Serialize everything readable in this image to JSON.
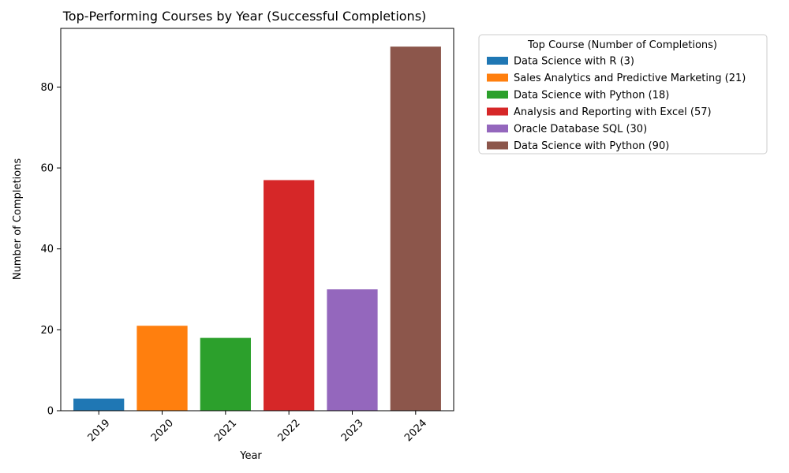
{
  "chart_data": {
    "type": "bar",
    "title": "Top-Performing Courses by Year (Successful Completions)",
    "xlabel": "Year",
    "ylabel": "Number of Completions",
    "categories": [
      "2019",
      "2020",
      "2021",
      "2022",
      "2023",
      "2024"
    ],
    "values": [
      3,
      21,
      18,
      57,
      30,
      90
    ],
    "colors": [
      "#1f77b4",
      "#ff7f0e",
      "#2ca02c",
      "#d62728",
      "#9467bd",
      "#8c564b"
    ],
    "ylim": [
      0,
      94.5
    ],
    "yticks": [
      0,
      20,
      40,
      60,
      80
    ],
    "grid": false,
    "legend": {
      "title": "Top Course (Number of Completions)",
      "placement": "outside-right",
      "entries": [
        "Data Science with R (3)",
        "Sales Analytics and Predictive Marketing (21)",
        "Data Science with Python (18)",
        "Analysis and Reporting with Excel (57)",
        "Oracle Database SQL (30)",
        "Data Science with Python (90)"
      ]
    }
  }
}
